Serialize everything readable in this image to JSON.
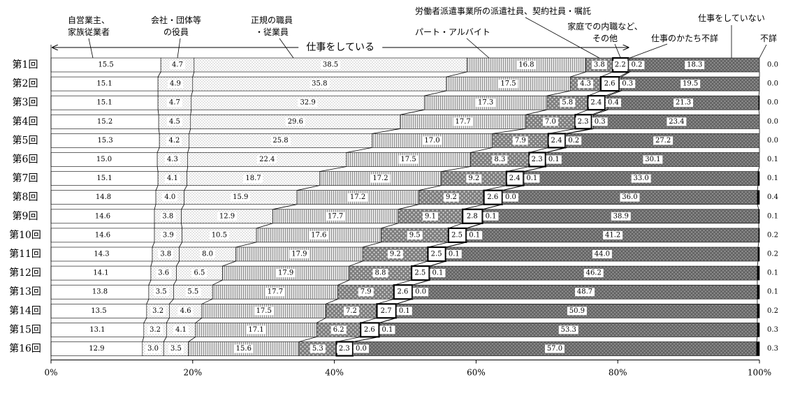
{
  "chart_data": {
    "type": "bar",
    "stacked": true,
    "orientation": "horizontal",
    "percent_scale": true,
    "xlim": [
      0,
      100
    ],
    "x_ticks": [
      "0%",
      "20%",
      "40%",
      "60%",
      "80%",
      "100%"
    ],
    "categories": [
      "第1回",
      "第2回",
      "第3回",
      "第4回",
      "第5回",
      "第6回",
      "第7回",
      "第8回",
      "第9回",
      "第10回",
      "第11回",
      "第12回",
      "第13回",
      "第14回",
      "第15回",
      "第16回"
    ],
    "series": [
      {
        "name": "自営業主、家族従業者",
        "values": [
          15.5,
          15.1,
          15.1,
          15.2,
          15.3,
          15.0,
          15.1,
          14.8,
          14.6,
          14.6,
          14.3,
          14.1,
          13.8,
          13.5,
          13.1,
          12.9
        ]
      },
      {
        "name": "会社・団体等の役員",
        "values": [
          4.7,
          4.9,
          4.7,
          4.5,
          4.2,
          4.3,
          4.1,
          4.0,
          3.8,
          3.9,
          3.8,
          3.6,
          3.5,
          3.2,
          3.2,
          3.0
        ]
      },
      {
        "name": "正規の職員・従業員",
        "values": [
          38.5,
          35.8,
          32.9,
          29.6,
          25.8,
          22.4,
          18.7,
          15.9,
          12.9,
          10.5,
          8.0,
          6.5,
          5.5,
          4.6,
          4.1,
          3.5
        ]
      },
      {
        "name": "パート・アルバイト",
        "values": [
          16.8,
          17.5,
          17.3,
          17.7,
          17.0,
          17.5,
          17.2,
          17.2,
          17.7,
          17.6,
          17.9,
          17.9,
          17.7,
          17.5,
          17.1,
          15.6
        ]
      },
      {
        "name": "労働者派遣事業所の派遣社員、契約社員・嘱託",
        "values": [
          3.8,
          4.3,
          5.8,
          7.0,
          7.9,
          8.3,
          9.2,
          9.2,
          9.1,
          9.5,
          9.2,
          8.8,
          7.9,
          7.2,
          6.2,
          5.3
        ]
      },
      {
        "name": "家庭での内職など、その他",
        "values": [
          2.2,
          2.6,
          2.4,
          2.3,
          2.4,
          2.3,
          2.4,
          2.6,
          2.8,
          2.5,
          2.5,
          2.5,
          2.6,
          2.7,
          2.6,
          2.3
        ]
      },
      {
        "name": "仕事のかたち不詳",
        "values": [
          0.2,
          0.3,
          0.4,
          0.3,
          0.2,
          0.1,
          0.1,
          0.0,
          0.1,
          0.1,
          0.1,
          0.1,
          0.0,
          0.1,
          0.1,
          0.0
        ]
      },
      {
        "name": "仕事をしていない",
        "values": [
          18.3,
          19.5,
          21.3,
          23.4,
          27.2,
          30.1,
          33.0,
          36.0,
          38.9,
          41.2,
          44.0,
          46.2,
          48.7,
          50.9,
          53.3,
          57.0
        ]
      },
      {
        "name": "不詳",
        "values": [
          0.0,
          0.0,
          0.0,
          0.0,
          0.0,
          0.1,
          0.1,
          0.4,
          0.1,
          0.2,
          0.2,
          0.1,
          0.1,
          0.2,
          0.3,
          0.3
        ]
      }
    ],
    "series_labels": [
      [
        "自営業主、",
        "家族従業者"
      ],
      [
        "会社・団体等",
        "の役員"
      ],
      [
        "正規の職員",
        "・従業員"
      ],
      [
        "パート・アルバイト"
      ],
      [
        "労働者派遣事業所の派遣社員、契約社員・嘱託"
      ],
      [
        "家庭での内職など、",
        "その他"
      ],
      [
        "仕事のかたち不詳"
      ],
      [
        "仕事をしていない"
      ],
      [
        "不詳"
      ]
    ],
    "bracket_label": "仕事をしている",
    "legend": "annotations-top",
    "grid": false
  }
}
